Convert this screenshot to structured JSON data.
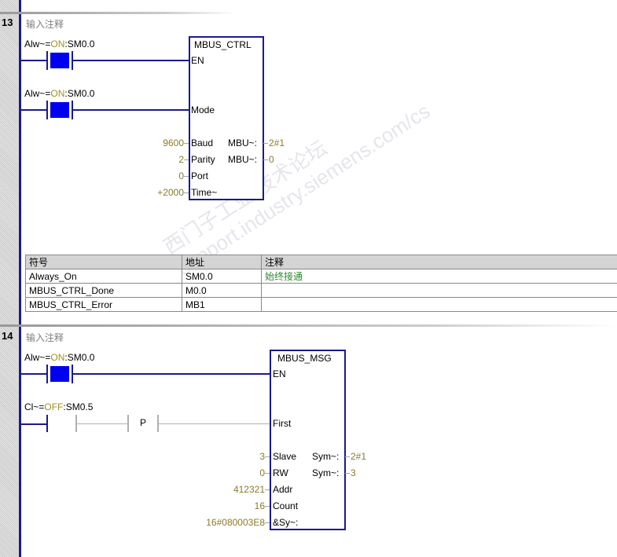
{
  "networks": [
    {
      "number": "13",
      "comment": "输入注释",
      "contacts": [
        {
          "label_prefix": "Alw~=",
          "state": "ON",
          "label_suffix": ":SM0.0"
        },
        {
          "label_prefix": "Alw~=",
          "state": "ON",
          "label_suffix": ":SM0.0"
        }
      ],
      "block": {
        "title": "MBUS_CTRL",
        "en": "EN",
        "mode": "Mode",
        "inputs": [
          {
            "value": "9600",
            "pin": "Baud"
          },
          {
            "value": "2",
            "pin": "Parity"
          },
          {
            "value": "0",
            "pin": "Port"
          },
          {
            "value": "+2000",
            "pin": "Time~"
          }
        ],
        "outputs": [
          {
            "pin": "MBU~:",
            "value": "2#1"
          },
          {
            "pin": "MBU~:",
            "value": "0"
          }
        ]
      },
      "symbol_table": {
        "headers": [
          "符号",
          "地址",
          "注释"
        ],
        "rows": [
          [
            "Always_On",
            "SM0.0",
            "始终接通"
          ],
          [
            "MBUS_CTRL_Done",
            "M0.0",
            ""
          ],
          [
            "MBUS_CTRL_Error",
            "MB1",
            ""
          ]
        ]
      }
    },
    {
      "number": "14",
      "comment": "输入注释",
      "contacts": [
        {
          "label_prefix": "Alw~=",
          "state": "ON",
          "label_suffix": ":SM0.0"
        },
        {
          "label_prefix": "Cl~=",
          "state": "OFF",
          "label_suffix": ":SM0.5"
        }
      ],
      "edge_label": "P",
      "block": {
        "title": "MBUS_MSG",
        "en": "EN",
        "first": "First",
        "inputs": [
          {
            "value": "3",
            "pin": "Slave"
          },
          {
            "value": "0",
            "pin": "RW"
          },
          {
            "value": "412321",
            "pin": "Addr"
          },
          {
            "value": "16",
            "pin": "Count"
          },
          {
            "value": "16#080003E8",
            "pin": "&Sy~:"
          }
        ],
        "outputs": [
          {
            "pin": "Sym~:",
            "value": "2#1"
          },
          {
            "pin": "Sym~:",
            "value": "3"
          }
        ]
      }
    }
  ],
  "watermark": "西门子工业 技术论坛 support.industry.siemens.com/cs",
  "colors": {
    "rail": "#1a1a8c",
    "contact_fill": "#0000f0",
    "value": "#8a7a2a",
    "comment_green": "#2a8a2a"
  }
}
